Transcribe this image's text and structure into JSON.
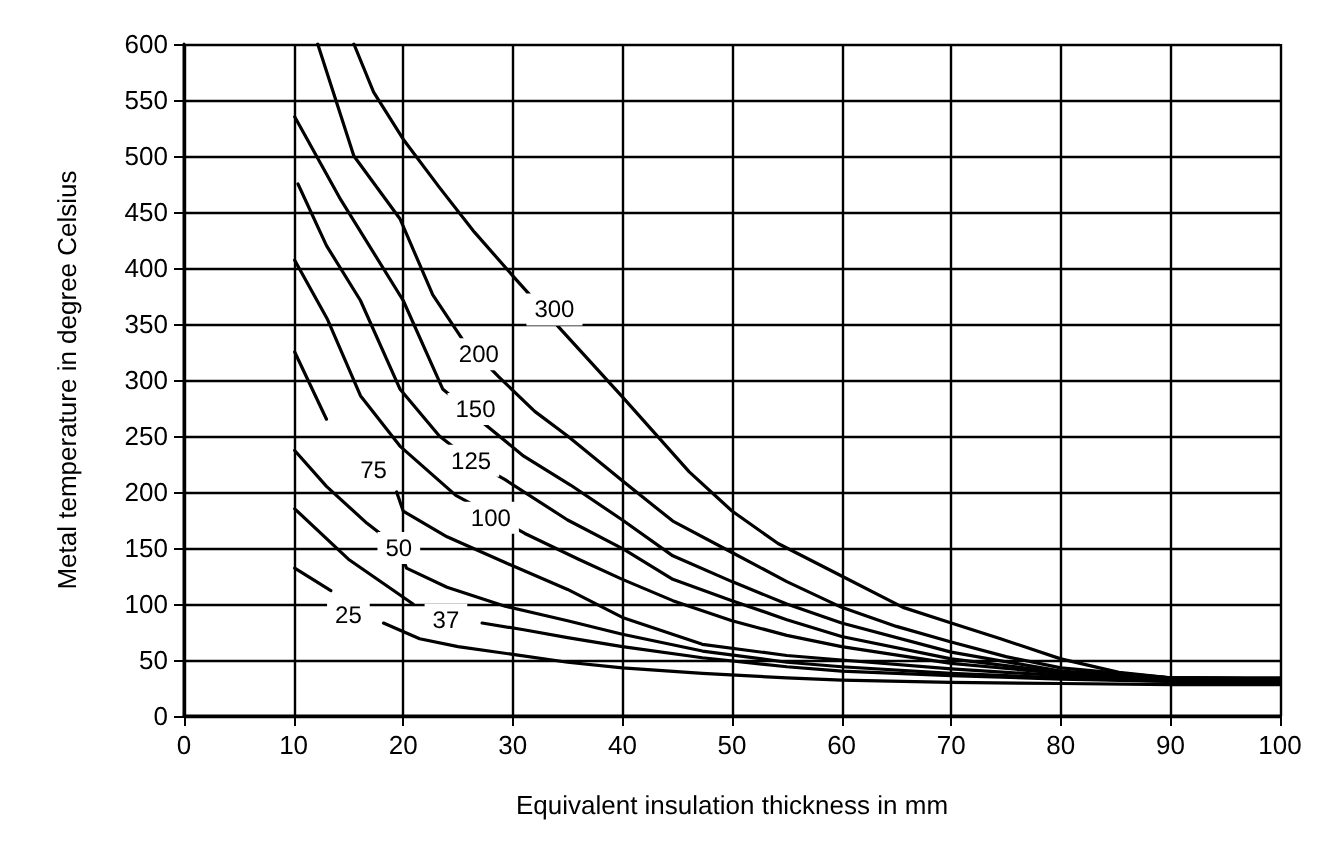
{
  "chart_data": {
    "type": "line",
    "xlabel": "Equivalent insulation thickness in mm",
    "ylabel": "Metal temperature in degree Celsius",
    "xlim": [
      0,
      100
    ],
    "xticks": [
      0,
      10,
      20,
      30,
      40,
      50,
      60,
      70,
      80,
      90,
      100
    ],
    "ylim": [
      0,
      600
    ],
    "yticks": [
      0,
      50,
      100,
      150,
      200,
      250,
      300,
      350,
      400,
      450,
      500,
      550,
      600
    ],
    "grid": true,
    "marker": "none",
    "line_style": "solid",
    "series": [
      {
        "color": "#000000",
        "x": [
          15.5,
          17.3,
          20,
          23.3,
          26.5,
          30,
          34.4,
          40,
          46.1,
          50,
          54.2,
          60,
          65.6,
          70,
          74.5,
          80,
          85.3,
          90,
          100
        ],
        "values": [
          600,
          557,
          515,
          472,
          432,
          393,
          345,
          285,
          218,
          183,
          154,
          125,
          97,
          83,
          69,
          51,
          39,
          34,
          34
        ]
      },
      {
        "color": "#000000",
        "x": [
          12.2,
          15.5,
          19.7,
          22.7,
          25.5,
          28.7,
          32,
          35,
          40,
          44.6,
          50,
          55,
          60,
          65,
          70,
          75,
          80,
          90,
          100
        ],
        "values": [
          600,
          500,
          444,
          376,
          335,
          303,
          272,
          250,
          210,
          174,
          146,
          120,
          97,
          80,
          66,
          53,
          43,
          34,
          33
        ]
      },
      {
        "color": "#000000",
        "x": [
          10.1,
          14.3,
          20,
          23.6,
          27.5,
          31,
          35.3,
          40,
          44.6,
          50,
          55,
          60,
          70,
          80,
          90,
          100
        ],
        "values": [
          535,
          461,
          371,
          292,
          260,
          232,
          206,
          175,
          143,
          120,
          100,
          83,
          57,
          40,
          34,
          33
        ]
      },
      {
        "color": "#000000",
        "x": [
          10.4,
          13,
          16.1,
          19.7,
          23.3,
          26.2,
          29.3,
          35,
          40.1,
          44.6,
          50,
          55,
          60,
          70,
          80,
          90,
          100
        ],
        "values": [
          475,
          420,
          371,
          292,
          250,
          228,
          211,
          175,
          149,
          122,
          103,
          86,
          71,
          51,
          39,
          34,
          33
        ]
      },
      {
        "color": "#000000",
        "x": [
          10.1,
          13.1,
          16.1,
          19.7,
          24.8,
          28,
          31.1,
          36,
          40,
          44.6,
          50,
          55,
          60,
          70,
          80,
          90,
          100
        ],
        "values": [
          407,
          354,
          286,
          241,
          197,
          180,
          163,
          140,
          122,
          103,
          85,
          72,
          62,
          47,
          38,
          33,
          32
        ]
      },
      {
        "color": "#000000",
        "x": [
          10.1,
          13,
          16.4,
          19.4,
          20,
          24,
          29.3,
          35,
          40,
          47.3,
          55,
          60,
          70,
          80,
          90,
          100
        ],
        "values": [
          325,
          265,
          null,
          200,
          183,
          160,
          137,
          113,
          88,
          64,
          54,
          50,
          42,
          36,
          32,
          31
        ]
      },
      {
        "color": "#000000",
        "x": [
          10.1,
          13,
          16.7,
          19.6,
          20.3,
          24,
          29.3,
          35,
          40,
          47.3,
          55,
          60,
          70,
          80,
          90,
          100
        ],
        "values": [
          237,
          205,
          172,
          150,
          132,
          115,
          98,
          85,
          73,
          58,
          48,
          44,
          38,
          34,
          31,
          30
        ]
      },
      {
        "color": "#000000",
        "x": [
          10.1,
          15,
          20.9,
          24,
          27.2,
          31,
          35,
          40,
          47.3,
          55,
          60,
          70,
          80,
          90,
          100
        ],
        "values": [
          185,
          140,
          100,
          null,
          83,
          77,
          70,
          62,
          52,
          44,
          40,
          36,
          33,
          31,
          30
        ]
      },
      {
        "color": "#000000",
        "x": [
          10.1,
          13.4,
          15.8,
          18.2,
          21.5,
          25,
          30,
          35,
          40,
          47.3,
          55,
          60,
          70,
          80,
          90,
          100
        ],
        "values": [
          132,
          112,
          null,
          83,
          69,
          62,
          55,
          48,
          43,
          38,
          34,
          32,
          30,
          29,
          28,
          28
        ]
      }
    ],
    "annotations": [
      {
        "text": "300",
        "x": 33.8,
        "y": 363
      },
      {
        "text": "200",
        "x": 26.9,
        "y": 323
      },
      {
        "text": "150",
        "x": 26.6,
        "y": 274
      },
      {
        "text": "125",
        "x": 26.2,
        "y": 228
      },
      {
        "text": "100",
        "x": 28,
        "y": 177
      },
      {
        "text": "75",
        "x": 17.3,
        "y": 220
      },
      {
        "text": "50",
        "x": 19.6,
        "y": 150
      },
      {
        "text": "37",
        "x": 23.9,
        "y": 86
      },
      {
        "text": "25",
        "x": 15,
        "y": 90
      }
    ]
  }
}
